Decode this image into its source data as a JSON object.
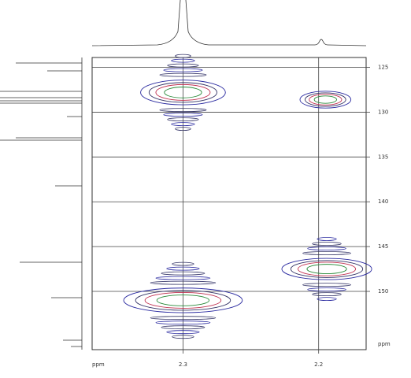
{
  "chart_data": {
    "type": "contour",
    "xlabel": "ppm",
    "ylabel": "ppm",
    "xlim": [
      2.367,
      2.165
    ],
    "ylim": [
      123.9,
      156.5
    ],
    "xticks": [
      2.3,
      2.2
    ],
    "yticks": [
      125,
      130,
      135,
      140,
      145,
      150
    ],
    "grid": true,
    "peaks": {
      "x": [
        2.3,
        2.3,
        2.195,
        2.194
      ],
      "y": [
        127.8,
        151,
        128.6,
        147.5
      ],
      "x_width": [
        0.05,
        0.07,
        0.03,
        0.053
      ],
      "y_width": [
        2.2,
        2.2,
        1.5,
        1.9
      ]
    },
    "colors": [
      "#2a2aa0",
      "#333366",
      "#c03050",
      "#2a8a3a"
    ]
  }
}
